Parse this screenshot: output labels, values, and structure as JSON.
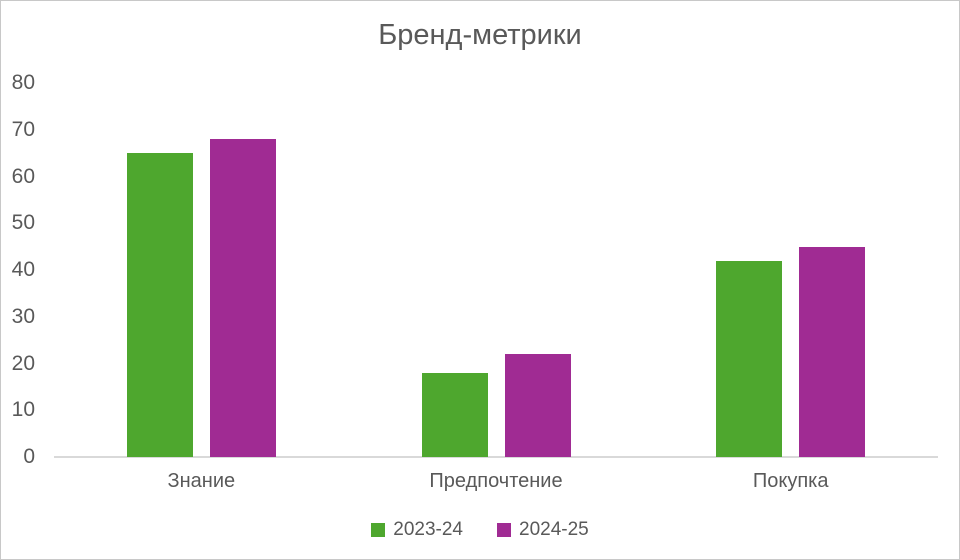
{
  "chart_data": {
    "type": "bar",
    "title": "Бренд-метрики",
    "categories": [
      "Знание",
      "Предпочтение",
      "Покупка"
    ],
    "series": [
      {
        "name": "2023-24",
        "color": "#4EA72E",
        "values": [
          65,
          18,
          42
        ]
      },
      {
        "name": "2024-25",
        "color": "#A02B93",
        "values": [
          68,
          22,
          45
        ]
      }
    ],
    "xlabel": "",
    "ylabel": "",
    "ylim": [
      0,
      80
    ],
    "yticks": [
      0,
      10,
      20,
      30,
      40,
      50,
      60,
      70,
      80
    ],
    "grid": false,
    "legend_position": "bottom"
  },
  "theme": {
    "text_color": "#595959",
    "axis_line_color": "#D9D9D9",
    "background_color": "#FFFFFF",
    "frame_border_color": "#C8C8C8"
  }
}
